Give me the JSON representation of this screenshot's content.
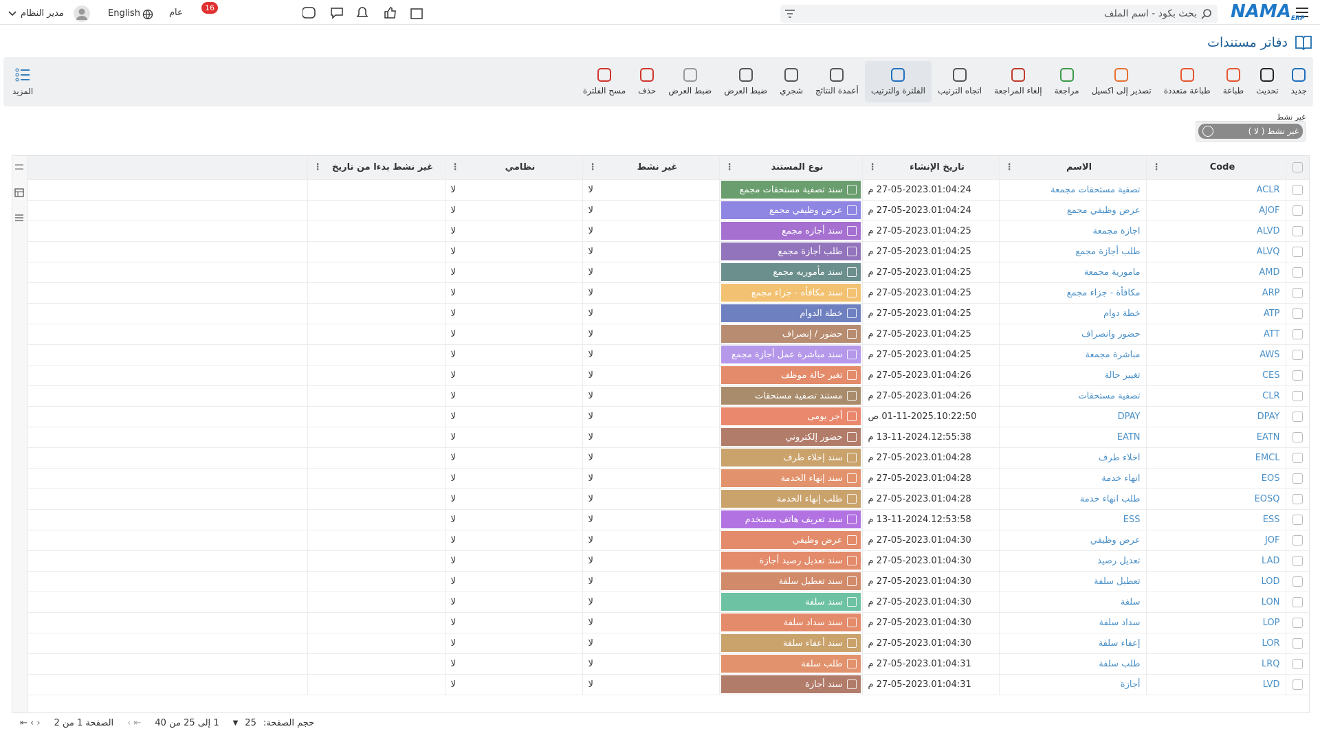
{
  "header": {
    "logo": "NAMA",
    "logo_sub": "ERP",
    "search_placeholder": "بحث بكود - اسم الملف",
    "notification_count": 16,
    "branch": "عام",
    "language": "English",
    "user": "مدير النظام"
  },
  "page_title": "دفاتر مستندات",
  "toolbar": {
    "items": [
      {
        "label": "جديد",
        "icon_color": "#1e6fc0"
      },
      {
        "label": "تحديث",
        "icon_color": "#222222"
      },
      {
        "label": "طباعة",
        "icon_color": "#e8552f"
      },
      {
        "label": "طباعة متعددة",
        "icon_color": "#e8552f"
      },
      {
        "label": "تصدير إلى اكسيل",
        "icon_color": "#e8702f"
      },
      {
        "label": "مراجعة",
        "icon_color": "#3a9a4a"
      },
      {
        "label": "إلغاء المراجعة",
        "icon_color": "#c0392b"
      },
      {
        "label": "اتجاه الترتيب",
        "icon_color": "#555555"
      },
      {
        "label": "الفلترة والترتيب",
        "icon_color": "#1e6fc0",
        "active": true
      },
      {
        "label": "أعمدة النتائج",
        "icon_color": "#555555"
      },
      {
        "label": "شجري",
        "icon_color": "#555555"
      },
      {
        "label": "ضبط العرض",
        "icon_color": "#555555"
      },
      {
        "label": "ضبط العرض",
        "icon_color": "#999999"
      },
      {
        "label": "حذف",
        "icon_color": "#d0342c"
      },
      {
        "label": "مسح الفلترة",
        "icon_color": "#d0342c"
      }
    ],
    "more": "المزيد"
  },
  "filter": {
    "label": "غير نشط",
    "chip": "غير نشط ( لا )"
  },
  "table": {
    "columns": [
      "Code",
      "الاسم",
      "تاريخ الإنشاء",
      "نوع المستند",
      "غير نشط",
      "نظامي",
      "غير نشط بدءا من تاريخ"
    ],
    "rows": [
      {
        "code": "ACLR",
        "name": "تصفية مستحقات مجمعة",
        "created": "27-05-2023.01:04:24 م",
        "doc_type": "سند تصفية مستحقات مجمع",
        "color": "#6a9e6e",
        "inactive": "لا",
        "system": "لا"
      },
      {
        "code": "AJOF",
        "name": "عرض وظيفي مجمع",
        "created": "27-05-2023.01:04:24 م",
        "doc_type": "عرض وظيفي مجمع",
        "color": "#8f86e4",
        "inactive": "لا",
        "system": "لا"
      },
      {
        "code": "ALVD",
        "name": "اجازة مجمعة",
        "created": "27-05-2023.01:04:25 م",
        "doc_type": "سند أجازه مجمع",
        "color": "#a670d0",
        "inactive": "لا",
        "system": "لا"
      },
      {
        "code": "ALVQ",
        "name": "طلب أجازة مجمع",
        "created": "27-05-2023.01:04:25 م",
        "doc_type": "طلب أجازة مجمع",
        "color": "#9274bc",
        "inactive": "لا",
        "system": "لا"
      },
      {
        "code": "AMD",
        "name": "مامورية مجمعة",
        "created": "27-05-2023.01:04:25 م",
        "doc_type": "سند مأموريه مجمع",
        "color": "#6b8f8c",
        "inactive": "لا",
        "system": "لا"
      },
      {
        "code": "ARP",
        "name": "مكافأة - جزاء مجمع",
        "created": "27-05-2023.01:04:25 م",
        "doc_type": "سند مكافأه - جزاء مجمع",
        "color": "#f2c272",
        "inactive": "لا",
        "system": "لا"
      },
      {
        "code": "ATP",
        "name": "خطة دوام",
        "created": "27-05-2023.01:04:25 م",
        "doc_type": "خطة الدوام",
        "color": "#6e80c0",
        "inactive": "لا",
        "system": "لا"
      },
      {
        "code": "ATT",
        "name": "حضور وانصراف",
        "created": "27-05-2023.01:04:25 م",
        "doc_type": "حضور / إنصراف",
        "color": "#b88c70",
        "inactive": "لا",
        "system": "لا"
      },
      {
        "code": "AWS",
        "name": "مباشرة مجمعة",
        "created": "27-05-2023.01:04:25 م",
        "doc_type": "سند مباشرة عمل أجازة مجمع",
        "color": "#b598ea",
        "inactive": "لا",
        "system": "لا"
      },
      {
        "code": "CES",
        "name": "تغيير حالة",
        "created": "27-05-2023.01:04:26 م",
        "doc_type": "تغير حالة موظف",
        "color": "#e38b6a",
        "inactive": "لا",
        "system": "لا"
      },
      {
        "code": "CLR",
        "name": "تصفية مستحقات",
        "created": "27-05-2023.01:04:26 م",
        "doc_type": "مستند تصفية مستحقات",
        "color": "#a88c6c",
        "inactive": "لا",
        "system": "لا"
      },
      {
        "code": "DPAY",
        "name": "DPAY",
        "created": "01-11-2025.10:22:50 ص",
        "doc_type": "أجر يومى",
        "color": "#e9886c",
        "inactive": "لا",
        "system": "لا"
      },
      {
        "code": "EATN",
        "name": "EATN",
        "created": "13-11-2024.12:55:38 م",
        "doc_type": "حضور إلكتروني",
        "color": "#b27c6a",
        "inactive": "لا",
        "system": "لا"
      },
      {
        "code": "EMCL",
        "name": "اخلاء طرف",
        "created": "27-05-2023.01:04:28 م",
        "doc_type": "سند إخلاء طرف",
        "color": "#c9a26c",
        "inactive": "لا",
        "system": "لا"
      },
      {
        "code": "EOS",
        "name": "انهاء خدمة",
        "created": "27-05-2023.01:04:28 م",
        "doc_type": "سند إنهاء الخدمة",
        "color": "#e2926c",
        "inactive": "لا",
        "system": "لا"
      },
      {
        "code": "EOSQ",
        "name": "طلب انهاء خدمة",
        "created": "27-05-2023.01:04:28 م",
        "doc_type": "طلب إنهاء الخدمة",
        "color": "#c9a26c",
        "inactive": "لا",
        "system": "لا"
      },
      {
        "code": "ESS",
        "name": "ESS",
        "created": "13-11-2024.12:53:58 م",
        "doc_type": "سند تعريف هاتف مستخدم",
        "color": "#b272e2",
        "inactive": "لا",
        "system": "لا"
      },
      {
        "code": "JOF",
        "name": "عرض وظيفي",
        "created": "27-05-2023.01:04:30 م",
        "doc_type": "عرض وظيفي",
        "color": "#e38b6a",
        "inactive": "لا",
        "system": "لا"
      },
      {
        "code": "LAD",
        "name": "تعديل رصيد",
        "created": "27-05-2023.01:04:30 م",
        "doc_type": "سند تعديل رصيد أجازة",
        "color": "#e38b6a",
        "inactive": "لا",
        "system": "لا"
      },
      {
        "code": "LOD",
        "name": "تعطيل سلفة",
        "created": "27-05-2023.01:04:30 م",
        "doc_type": "سند تعطيل سلفة",
        "color": "#d28b6a",
        "inactive": "لا",
        "system": "لا"
      },
      {
        "code": "LON",
        "name": "سلفة",
        "created": "27-05-2023.01:04:30 م",
        "doc_type": "سند سلفة",
        "color": "#6cc2a2",
        "inactive": "لا",
        "system": "لا"
      },
      {
        "code": "LOP",
        "name": "سداد سلفة",
        "created": "27-05-2023.01:04:30 م",
        "doc_type": "سند سداد سلفة",
        "color": "#e38b6a",
        "inactive": "لا",
        "system": "لا"
      },
      {
        "code": "LOR",
        "name": "إعفاء سلفة",
        "created": "27-05-2023.01:04:30 م",
        "doc_type": "سند أعفاء سلفة",
        "color": "#c9a26c",
        "inactive": "لا",
        "system": "لا"
      },
      {
        "code": "LRQ",
        "name": "طلب سلفة",
        "created": "27-05-2023.01:04:31 م",
        "doc_type": "طلب سلفة",
        "color": "#e2926c",
        "inactive": "لا",
        "system": "لا"
      },
      {
        "code": "LVD",
        "name": "أجازة",
        "created": "27-05-2023.01:04:31 م",
        "doc_type": "سند أجازة",
        "color": "#b27c6a",
        "inactive": "لا",
        "system": "لا"
      }
    ]
  },
  "footer": {
    "page_size_label": "حجم الصفحة:",
    "page_size": 25,
    "range": "1 إلى 25 من 40",
    "page": "الصفحة 1 من 2"
  }
}
